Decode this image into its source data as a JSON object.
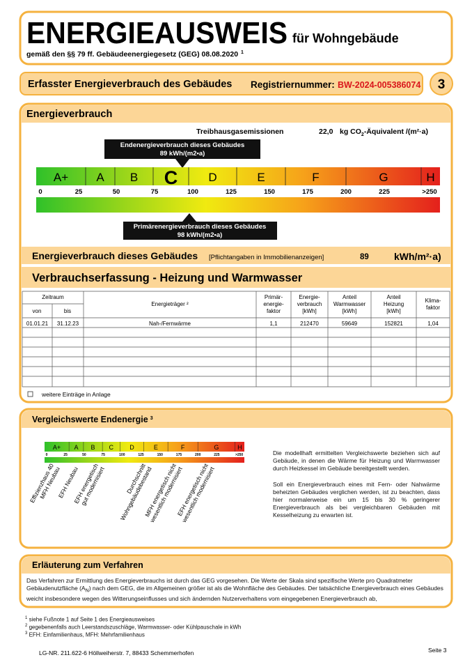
{
  "header": {
    "title": "ENERGIEAUSWEIS",
    "subtitle": "für Wohngebäude",
    "legal": "gemäß den §§ 79 ff. Gebäudeenergiegesetz (GEG) 08.08.2020",
    "legal_note": "1"
  },
  "section_bar": {
    "title": "Erfasster Energieverbrauch des Gebäudes",
    "registration_label": "Registriernummer:",
    "registration_number": "BW-2024-005386074",
    "page_badge": "3"
  },
  "energy": {
    "heading": "Energieverbrauch",
    "ghg_label": "Treibhausgasemissionen",
    "ghg_value": "22,0",
    "ghg_unit_pre": "kg CO",
    "ghg_unit_sub": "2",
    "ghg_unit_post": "-Äquivalent /(m²·a)",
    "final_marker": {
      "label": "Endenergieverbrauch dieses Gebäudes",
      "value": "89 kWh/(m2•a)"
    },
    "classes": [
      "A+",
      "A",
      "B",
      "C",
      "D",
      "E",
      "F",
      "G",
      "H"
    ],
    "scale": [
      "0",
      "25",
      "50",
      "75",
      "100",
      "125",
      "150",
      "175",
      "200",
      "225",
      ">250"
    ],
    "primary_marker": {
      "label": "Primärenergieverbrauch dieses Gebäudes",
      "value": "98 kWh/(m2•a)"
    },
    "consumption": {
      "label": "Energieverbrauch dieses Gebäudes",
      "note": "[Pflichtangaben in Immobilienanzeigen]",
      "value": "89",
      "unit": "kWh/m²·a)"
    }
  },
  "recording": {
    "heading": "Verbrauchserfassung - Heizung und Warmwasser",
    "header": {
      "period": "Zeitraum",
      "from": "von",
      "to": "bis",
      "carrier": "Energieträger ²",
      "columns": [
        [
          "Primär-",
          "energie-",
          "faktor"
        ],
        [
          "Energie-",
          "verbrauch",
          "[kWh]"
        ],
        [
          "Anteil",
          "Warmwasser",
          "[kWh]"
        ],
        [
          "Anteil",
          "Heizung",
          "[kWh]"
        ],
        [
          "Klima-",
          "faktor"
        ]
      ]
    },
    "rows": [
      [
        "01.01.21",
        "31.12.23",
        "Nah-/Fernwärme",
        "1,1",
        "212470",
        "59649",
        "152821",
        "1,04"
      ]
    ],
    "more_entries": "weitere Einträge in Anlage"
  },
  "comparison": {
    "heading": "Vergleichswerte Endenergie",
    "heading_note": "3",
    "labels": [
      [
        "Effizienzhaus 40",
        "MFH Neubau"
      ],
      [
        "EFH Neubau"
      ],
      [
        "EFH energetisch",
        "gut modernisiert"
      ],
      [
        "Durchschnitt",
        "Wohngebäudebestand"
      ],
      [
        "MFH energetisch nicht",
        "wesentlich modernisiert"
      ],
      [
        "EFH energetisch nicht",
        "wesentlich modernisiert"
      ]
    ],
    "paragraphs": [
      "Die modellhaft ermittelten Vergleichswerte beziehen sich auf Gebäude, in denen die Wärme für Heizung und Warmwasser durch Heizkessel im Gebäude bereitgestellt werden.",
      "Soll ein Energieverbrauch eines mit Fern- oder Nahwärme beheizten Gebäudes verglichen werden, ist zu beachten, dass hier normalerweise ein um 15 bis 30 % geringerer Energieverbrauch als bei vergleichbaren Gebäuden mit Kesselheizung zu erwarten ist."
    ]
  },
  "explanation": {
    "heading": "Erläuterung zum Verfahren",
    "text_before": "Das Verfahren zur Ermittlung des Energieverbrauchs ist durch das GEG vorgesehen. Die Werte der Skala sind spezifische Werte pro Quadratmeter Gebäudenutzfläche (A",
    "text_sub": "N",
    "text_after": ") nach dem GEG, die im Allgemeinen größer ist als die Wohnfläche des Gebäudes. Der tatsächliche Energieverbrauch eines Gebäudes weicht insbesondere wegen des Witterungseinflusses und sich ändernden Nutzerverhaltens vom eingegebenen Energieverbrauch ab,"
  },
  "footnotes": [
    {
      "mark": "1",
      "text": "siehe Fußnote 1 auf Seite 1 des Energieausweises"
    },
    {
      "mark": "2",
      "text": "gegebenenfalls auch Leerstandszuschläge, Warmwasser- oder Kühlpauschale in kWh"
    },
    {
      "mark": "3",
      "text": "EFH: Einfamilienhaus, MFH: Mehrfamilienhaus"
    }
  ],
  "footer": {
    "issuer": "LG-NR. 211.622-6 Höllweiherstr. 7, 88433 Schemmerhofen",
    "page": "Seite 3"
  }
}
